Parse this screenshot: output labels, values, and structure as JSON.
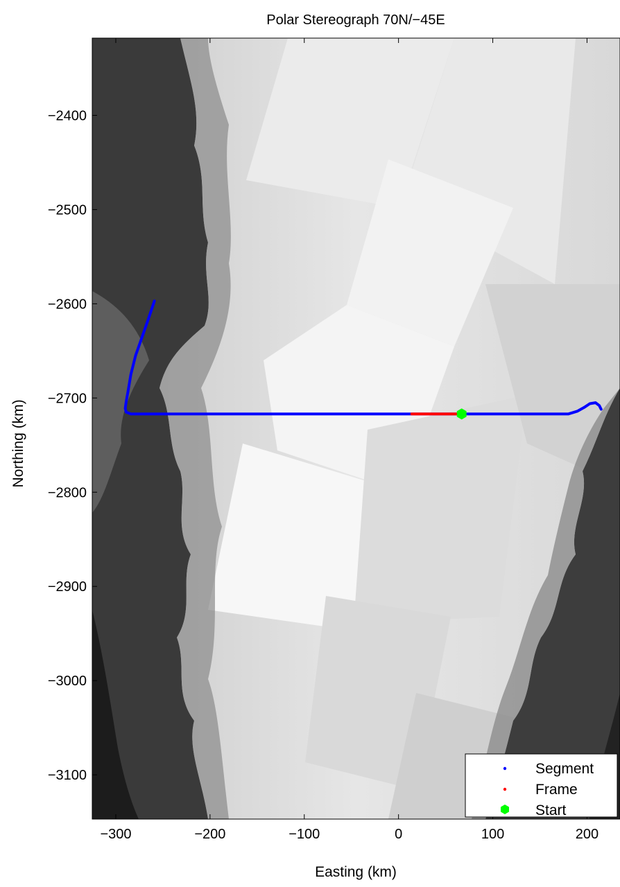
{
  "title": "Polar Stereograph 70N/−45E",
  "chart_data": {
    "type": "map",
    "projection": "Polar Stereograph 70N/−45E",
    "xlabel": "Easting (km)",
    "ylabel": "Northing (km)",
    "xlim": [
      -325,
      235
    ],
    "ylim": [
      -3147,
      -2318
    ],
    "xticks": [
      -300,
      -200,
      -100,
      0,
      100,
      200
    ],
    "xtick_labels": [
      "−300",
      "−200",
      "−100",
      "0",
      "100",
      "200"
    ],
    "yticks": [
      -2400,
      -2500,
      -2600,
      -2700,
      -2800,
      -2900,
      -3000,
      -3100
    ],
    "ytick_labels": [
      "−2400",
      "−2500",
      "−2600",
      "−2700",
      "−2800",
      "−2900",
      "−3000",
      "−3100"
    ],
    "grid": false,
    "legend_position": "bottom-right",
    "series": [
      {
        "name": "Segment",
        "color": "#0000ff",
        "marker": "dot",
        "x": [
          -259,
          -265,
          -272,
          -279,
          -284,
          -287,
          -289,
          -290,
          -289,
          -284,
          -260,
          -200,
          -100,
          0,
          100,
          180,
          190,
          197,
          203,
          209,
          213,
          215
        ],
        "y": [
          -2597,
          -2615,
          -2635,
          -2655,
          -2675,
          -2693,
          -2704,
          -2711,
          -2715,
          -2717,
          -2717,
          -2717,
          -2717,
          -2717,
          -2717,
          -2717,
          -2714,
          -2710,
          -2706,
          -2705,
          -2708,
          -2712
        ]
      },
      {
        "name": "Frame",
        "color": "#ff0000",
        "marker": "dot",
        "x": [
          14,
          30,
          45,
          60,
          67
        ],
        "y": [
          -2717,
          -2717,
          -2717,
          -2717,
          -2717
        ]
      },
      {
        "name": "Start",
        "color": "#00ff00",
        "marker": "hexagram",
        "x": [
          67
        ],
        "y": [
          -2717
        ]
      }
    ],
    "background": {
      "ocean_color": "#1a1a1a",
      "land_color": "#333333",
      "ice_color": "#dcdcdc"
    }
  }
}
